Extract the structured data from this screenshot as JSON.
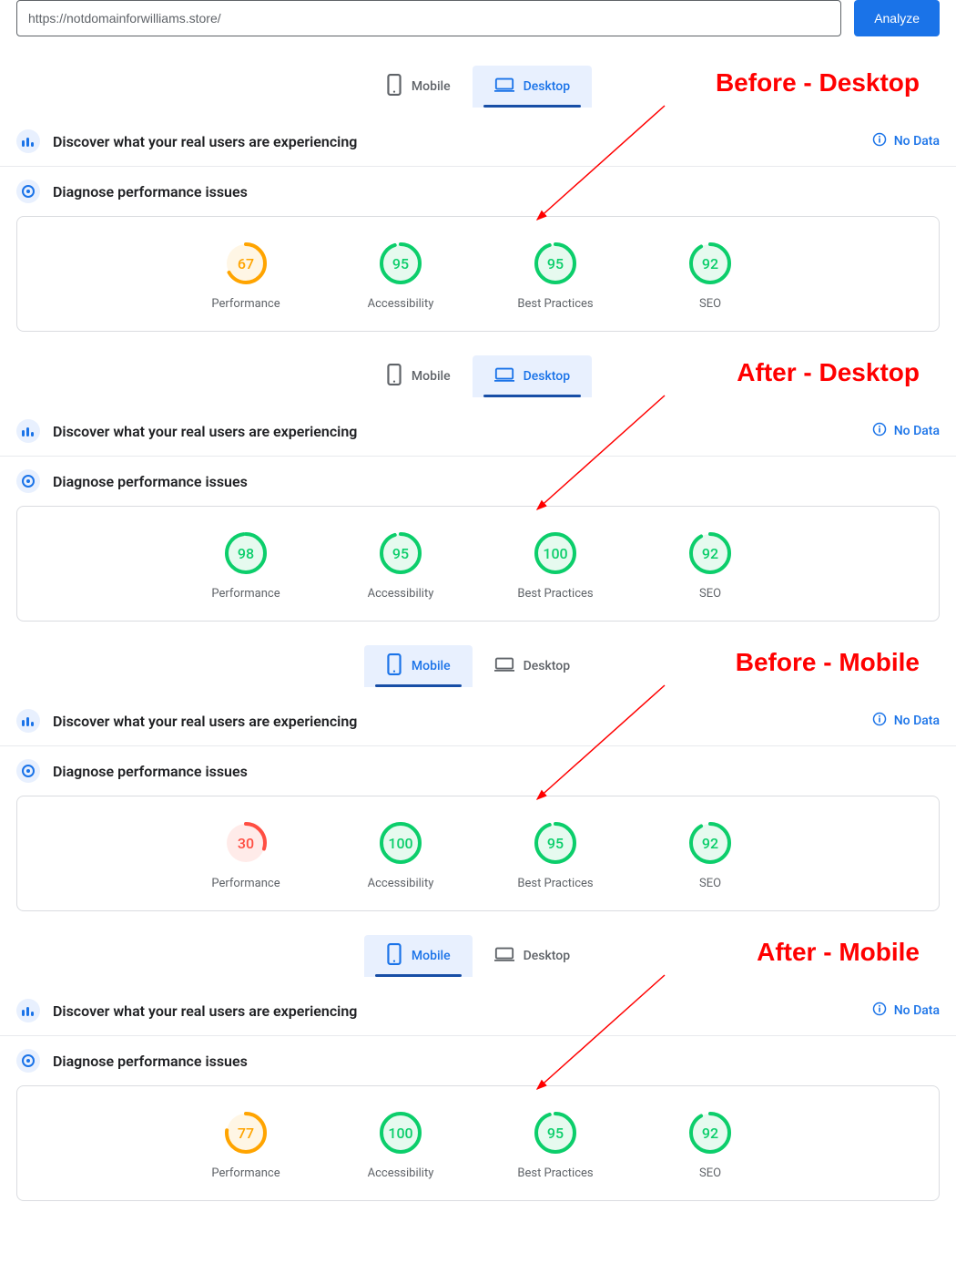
{
  "colors": {
    "blue": "#1a73e8",
    "blue_bg": "#e8f0fe",
    "grey_text": "#5f6368",
    "border": "#dadce0",
    "divider": "#e8eaed",
    "white": "#ffffff",
    "annotation_red": "#ff0000",
    "score_green": "#0cce6b",
    "score_green_bg": "#e6faef",
    "score_orange": "#ffa400",
    "score_orange_bg": "#fff6e5",
    "score_red": "#ff4e42",
    "score_red_bg": "#ffebe9"
  },
  "top": {
    "url_value": "https://notdomainforwilliams.store/",
    "analyze_label": "Analyze"
  },
  "tabs": {
    "mobile": "Mobile",
    "desktop": "Desktop"
  },
  "section_titles": {
    "discover": "Discover what your real users are experiencing",
    "diagnose": "Diagnose performance issues",
    "no_data": "No Data"
  },
  "metric_labels": {
    "performance": "Performance",
    "accessibility": "Accessibility",
    "best_practices": "Best Practices",
    "seo": "SEO"
  },
  "annotations": {
    "a1": "Before - Desktop",
    "a2": "After - Desktop",
    "a3": "Before - Mobile",
    "a4": "After - Mobile"
  },
  "reports": [
    {
      "active_tab": "desktop",
      "annotation_key": "a1",
      "scores": [
        {
          "label_key": "performance",
          "value": 67,
          "tier": "orange"
        },
        {
          "label_key": "accessibility",
          "value": 95,
          "tier": "green"
        },
        {
          "label_key": "best_practices",
          "value": 95,
          "tier": "green"
        },
        {
          "label_key": "seo",
          "value": 92,
          "tier": "green"
        }
      ]
    },
    {
      "active_tab": "desktop",
      "annotation_key": "a2",
      "scores": [
        {
          "label_key": "performance",
          "value": 98,
          "tier": "green"
        },
        {
          "label_key": "accessibility",
          "value": 95,
          "tier": "green"
        },
        {
          "label_key": "best_practices",
          "value": 100,
          "tier": "green"
        },
        {
          "label_key": "seo",
          "value": 92,
          "tier": "green"
        }
      ]
    },
    {
      "active_tab": "mobile",
      "annotation_key": "a3",
      "scores": [
        {
          "label_key": "performance",
          "value": 30,
          "tier": "red"
        },
        {
          "label_key": "accessibility",
          "value": 100,
          "tier": "green"
        },
        {
          "label_key": "best_practices",
          "value": 95,
          "tier": "green"
        },
        {
          "label_key": "seo",
          "value": 92,
          "tier": "green"
        }
      ]
    },
    {
      "active_tab": "mobile",
      "annotation_key": "a4",
      "scores": [
        {
          "label_key": "performance",
          "value": 77,
          "tier": "orange"
        },
        {
          "label_key": "accessibility",
          "value": 100,
          "tier": "green"
        },
        {
          "label_key": "best_practices",
          "value": 95,
          "tier": "green"
        },
        {
          "label_key": "seo",
          "value": 92,
          "tier": "green"
        }
      ]
    }
  ]
}
